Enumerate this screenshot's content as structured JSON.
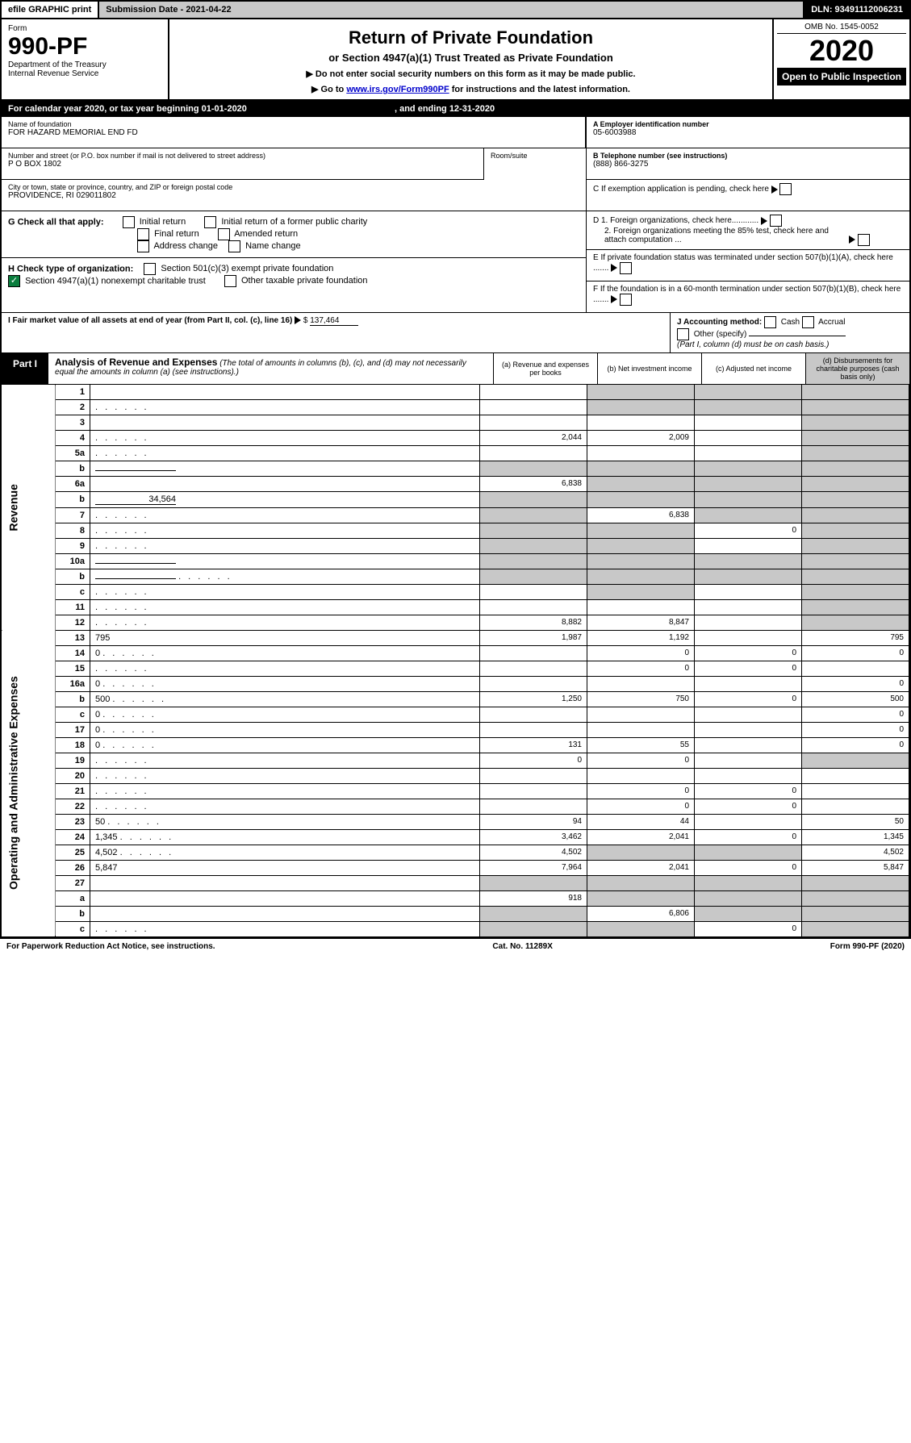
{
  "topbar": {
    "efile": "efile GRAPHIC print",
    "subdate": "Submission Date - 2021-04-22",
    "dln": "DLN: 93491112006231"
  },
  "header": {
    "form_word": "Form",
    "form_num": "990-PF",
    "dept": "Department of the Treasury",
    "irs": "Internal Revenue Service",
    "title": "Return of Private Foundation",
    "subtitle": "or Section 4947(a)(1) Trust Treated as Private Foundation",
    "instr1": "▶ Do not enter social security numbers on this form as it may be made public.",
    "instr2_pre": "▶ Go to ",
    "instr2_link": "www.irs.gov/Form990PF",
    "instr2_post": " for instructions and the latest information.",
    "omb": "OMB No. 1545-0052",
    "year": "2020",
    "open": "Open to Public Inspection"
  },
  "calyear": {
    "text_pre": "For calendar year 2020, or tax year beginning 01-01-2020",
    "text_mid": ", and ending 12-31-2020"
  },
  "entity": {
    "name_label": "Name of foundation",
    "name": "FOR HAZARD MEMORIAL END FD",
    "addr_label": "Number and street (or P.O. box number if mail is not delivered to street address)",
    "addr": "P O BOX 1802",
    "room_label": "Room/suite",
    "city_label": "City or town, state or province, country, and ZIP or foreign postal code",
    "city": "PROVIDENCE, RI  029011802",
    "ein_label": "A Employer identification number",
    "ein": "05-6003988",
    "tel_label": "B Telephone number (see instructions)",
    "tel": "(888) 866-3275",
    "c_label": "C If exemption application is pending, check here",
    "d1": "D 1. Foreign organizations, check here............",
    "d2": "2. Foreign organizations meeting the 85% test, check here and attach computation ...",
    "e_label": "E If private foundation status was terminated under section 507(b)(1)(A), check here .......",
    "f_label": "F If the foundation is in a 60-month termination under section 507(b)(1)(B), check here ......."
  },
  "g": {
    "label": "G Check all that apply:",
    "opts": [
      "Initial return",
      "Initial return of a former public charity",
      "Final return",
      "Amended return",
      "Address change",
      "Name change"
    ]
  },
  "h": {
    "label": "H Check type of organization:",
    "opt1": "Section 501(c)(3) exempt private foundation",
    "opt2": "Section 4947(a)(1) nonexempt charitable trust",
    "opt3": "Other taxable private foundation"
  },
  "i": {
    "label": "I Fair market value of all assets at end of year (from Part II, col. (c), line 16)",
    "amount": "137,464"
  },
  "j": {
    "label": "J Accounting method:",
    "cash": "Cash",
    "accrual": "Accrual",
    "other": "Other (specify)",
    "note": "(Part I, column (d) must be on cash basis.)"
  },
  "part1": {
    "label": "Part I",
    "title": "Analysis of Revenue and Expenses",
    "subtitle": "(The total of amounts in columns (b), (c), and (d) may not necessarily equal the amounts in column (a) (see instructions).)",
    "col_a": "(a) Revenue and expenses per books",
    "col_b": "(b) Net investment income",
    "col_c": "(c) Adjusted net income",
    "col_d": "(d) Disbursements for charitable purposes (cash basis only)",
    "revenue_label": "Revenue",
    "expense_label": "Operating and Administrative Expenses"
  },
  "rows": [
    {
      "n": "1",
      "d": "",
      "a": "",
      "b": "",
      "c": "",
      "sb": true,
      "sc": true,
      "sd": true
    },
    {
      "n": "2",
      "d": "",
      "dots": true,
      "a": "",
      "b": "",
      "c": "",
      "sb": true,
      "sc": true,
      "sd": true
    },
    {
      "n": "3",
      "d": "",
      "a": "",
      "b": "",
      "c": "",
      "sd": true
    },
    {
      "n": "4",
      "d": "",
      "dots": true,
      "a": "2,044",
      "b": "2,009",
      "c": "",
      "sd": true
    },
    {
      "n": "5a",
      "d": "",
      "dots": true,
      "a": "",
      "b": "",
      "c": "",
      "sd": true
    },
    {
      "n": "b",
      "d": "",
      "inline": true,
      "a": "",
      "b": "",
      "c": "",
      "sa": true,
      "sb": true,
      "sc": true,
      "sd": true
    },
    {
      "n": "6a",
      "d": "",
      "a": "6,838",
      "b": "",
      "c": "",
      "sb": true,
      "sc": true,
      "sd": true
    },
    {
      "n": "b",
      "d": "",
      "inline": true,
      "inline_val": "34,564",
      "a": "",
      "b": "",
      "c": "",
      "sa": true,
      "sb": true,
      "sc": true,
      "sd": true
    },
    {
      "n": "7",
      "d": "",
      "dots": true,
      "a": "",
      "b": "6,838",
      "c": "",
      "sa": true,
      "sc": true,
      "sd": true
    },
    {
      "n": "8",
      "d": "",
      "dots": true,
      "a": "",
      "b": "",
      "c": "0",
      "sa": true,
      "sb": true,
      "sd": true
    },
    {
      "n": "9",
      "d": "",
      "dots": true,
      "a": "",
      "b": "",
      "c": "",
      "sa": true,
      "sb": true,
      "sd": true
    },
    {
      "n": "10a",
      "d": "",
      "inline": true,
      "a": "",
      "b": "",
      "c": "",
      "sa": true,
      "sb": true,
      "sc": true,
      "sd": true
    },
    {
      "n": "b",
      "d": "",
      "dots": true,
      "inline": true,
      "a": "",
      "b": "",
      "c": "",
      "sa": true,
      "sb": true,
      "sc": true,
      "sd": true
    },
    {
      "n": "c",
      "d": "",
      "dots": true,
      "a": "",
      "b": "",
      "c": "",
      "sb": true,
      "sd": true
    },
    {
      "n": "11",
      "d": "",
      "dots": true,
      "a": "",
      "b": "",
      "c": "",
      "sd": true
    },
    {
      "n": "12",
      "d": "",
      "dots": true,
      "a": "8,882",
      "b": "8,847",
      "c": "",
      "sd": true
    }
  ],
  "exp_rows": [
    {
      "n": "13",
      "d": "795",
      "a": "1,987",
      "b": "1,192",
      "c": ""
    },
    {
      "n": "14",
      "d": "0",
      "dots": true,
      "a": "",
      "b": "0",
      "c": "0"
    },
    {
      "n": "15",
      "d": "",
      "dots": true,
      "a": "",
      "b": "0",
      "c": "0"
    },
    {
      "n": "16a",
      "d": "0",
      "dots": true,
      "a": "",
      "b": "",
      "c": ""
    },
    {
      "n": "b",
      "d": "500",
      "dots": true,
      "a": "1,250",
      "b": "750",
      "c": "0"
    },
    {
      "n": "c",
      "d": "0",
      "dots": true,
      "a": "",
      "b": "",
      "c": ""
    },
    {
      "n": "17",
      "d": "0",
      "dots": true,
      "a": "",
      "b": "",
      "c": ""
    },
    {
      "n": "18",
      "d": "0",
      "dots": true,
      "a": "131",
      "b": "55",
      "c": ""
    },
    {
      "n": "19",
      "d": "",
      "dots": true,
      "a": "0",
      "b": "0",
      "c": "",
      "sd": true
    },
    {
      "n": "20",
      "d": "",
      "dots": true,
      "a": "",
      "b": "",
      "c": ""
    },
    {
      "n": "21",
      "d": "",
      "dots": true,
      "a": "",
      "b": "0",
      "c": "0"
    },
    {
      "n": "22",
      "d": "",
      "dots": true,
      "a": "",
      "b": "0",
      "c": "0"
    },
    {
      "n": "23",
      "d": "50",
      "dots": true,
      "a": "94",
      "b": "44",
      "c": ""
    },
    {
      "n": "24",
      "d": "1,345",
      "dots": true,
      "a": "3,462",
      "b": "2,041",
      "c": "0"
    },
    {
      "n": "25",
      "d": "4,502",
      "dots": true,
      "a": "4,502",
      "b": "",
      "c": "",
      "sb": true,
      "sc": true
    },
    {
      "n": "26",
      "d": "5,847",
      "a": "7,964",
      "b": "2,041",
      "c": "0"
    },
    {
      "n": "27",
      "d": "",
      "a": "",
      "b": "",
      "c": "",
      "sa": true,
      "sb": true,
      "sc": true,
      "sd": true
    },
    {
      "n": "a",
      "d": "",
      "a": "918",
      "b": "",
      "c": "",
      "sb": true,
      "sc": true,
      "sd": true
    },
    {
      "n": "b",
      "d": "",
      "a": "",
      "b": "6,806",
      "c": "",
      "sa": true,
      "sc": true,
      "sd": true
    },
    {
      "n": "c",
      "d": "",
      "dots": true,
      "a": "",
      "b": "",
      "c": "0",
      "sa": true,
      "sb": true,
      "sd": true
    }
  ],
  "footer": {
    "left": "For Paperwork Reduction Act Notice, see instructions.",
    "mid": "Cat. No. 11289X",
    "right": "Form 990-PF (2020)"
  }
}
